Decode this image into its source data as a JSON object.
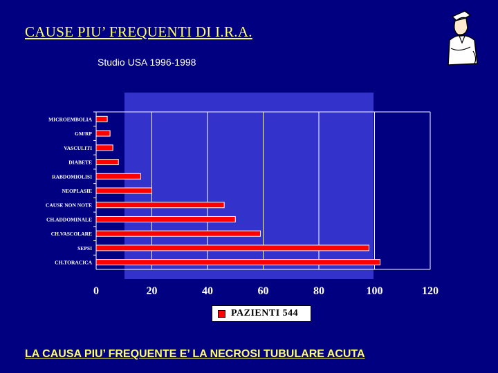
{
  "slide": {
    "title": "CAUSE PIU’ FREQUENTI DI I.R.A.",
    "subtitle": "Studio USA 1996-1998",
    "footer": "LA CAUSA PIU’ FREQUENTE E’ LA NECROSI TUBULARE ACUTA"
  },
  "chart_data": {
    "type": "bar",
    "orientation": "horizontal",
    "categories": [
      "MICROEMBOLIA",
      "GM/RP",
      "VASCULITI",
      "DIABETE",
      "RABDOMIOLISI",
      "NEOPLASIE",
      "CAUSE NON NOTE",
      "CH.ADDOMINALE",
      "CH.VASCOLARE",
      "SEPSI",
      "CH.TORACICA"
    ],
    "series": [
      {
        "name": "PAZIENTI 544",
        "values": [
          4,
          5,
          6,
          8,
          16,
          20,
          46,
          50,
          59,
          98,
          102
        ]
      }
    ],
    "xlim": [
      0,
      120
    ],
    "xticks": [
      0,
      20,
      40,
      60,
      80,
      100,
      120
    ],
    "grid": true,
    "legend_position": "bottom",
    "colors": {
      "bar": "#ff0000",
      "plot_bg": "#3333cc",
      "grid": "#ffffff"
    }
  }
}
